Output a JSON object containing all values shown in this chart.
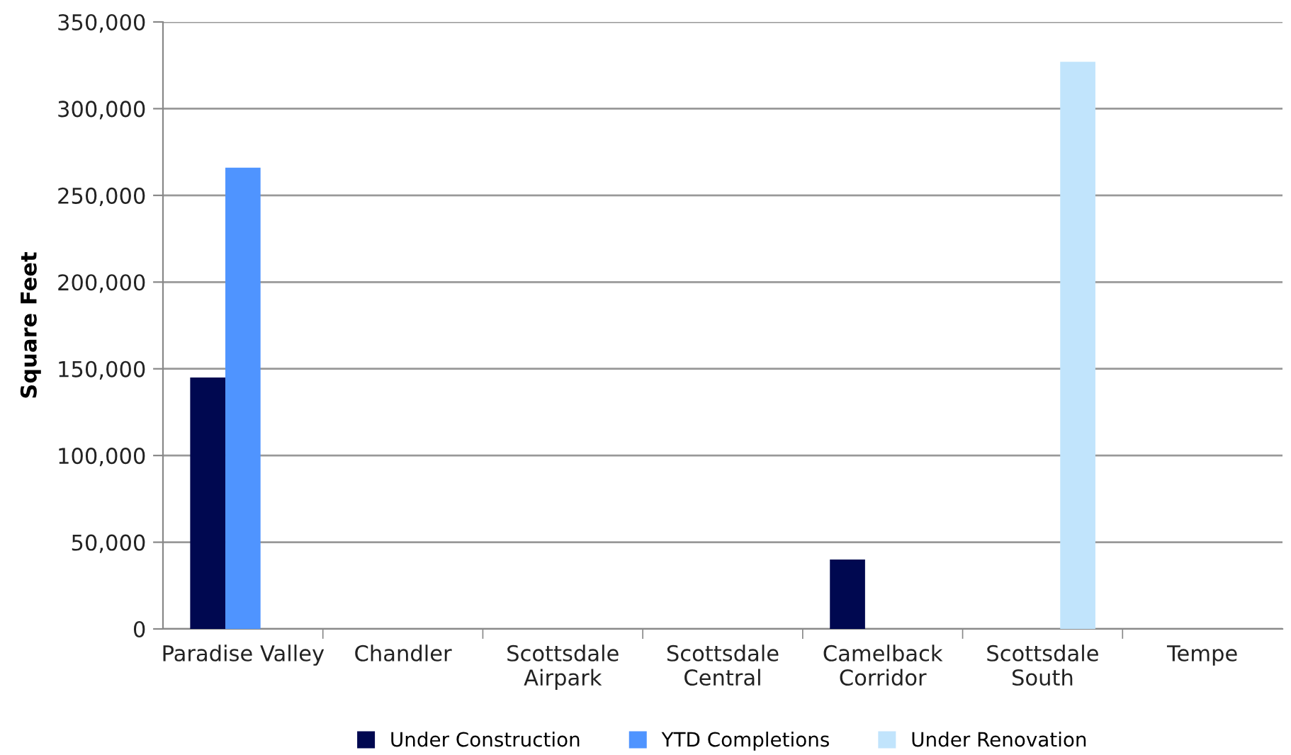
{
  "chart_data": {
    "type": "bar",
    "ylabel": "Square Feet",
    "categories": [
      "Paradise Valley",
      "Chandler",
      "Scottsdale\nAirpark",
      "Scottsdale\nCentral",
      "Camelback\nCorridor",
      "Scottsdale\nSouth",
      "Tempe"
    ],
    "series": [
      {
        "name": "Under Construction",
        "color": "#000850",
        "values": [
          145000,
          0,
          0,
          0,
          40000,
          0,
          0
        ]
      },
      {
        "name": "YTD Completions",
        "color": "#4f94ff",
        "values": [
          266000,
          0,
          0,
          0,
          0,
          0,
          0
        ]
      },
      {
        "name": "Under Renovation",
        "color": "#c1e4fc",
        "values": [
          0,
          0,
          0,
          0,
          0,
          327000,
          0
        ]
      }
    ],
    "ylim": [
      0,
      350000
    ],
    "yticks": [
      {
        "value": 0,
        "label": "0"
      },
      {
        "value": 50000,
        "label": "50,000"
      },
      {
        "value": 100000,
        "label": "100,000"
      },
      {
        "value": 150000,
        "label": "150,000"
      },
      {
        "value": 200000,
        "label": "200,000"
      },
      {
        "value": 250000,
        "label": "250,000"
      },
      {
        "value": 300000,
        "label": "300,000"
      },
      {
        "value": 350000,
        "label": "350,000"
      }
    ],
    "grid": "y",
    "legend": "bottom"
  }
}
